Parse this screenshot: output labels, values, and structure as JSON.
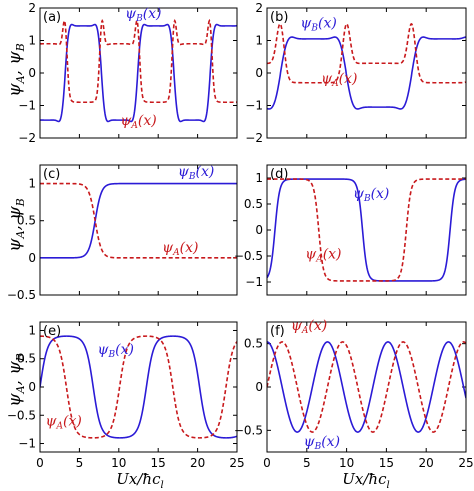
{
  "colors": {
    "psi_B": "#2b1bd6",
    "psi_A": "#c8191c",
    "axes": "#000000"
  },
  "figure": {
    "ylabel": "ψA, ψB",
    "xlabel": "Ux/ħc_l"
  },
  "chart_data": [
    {
      "panel": "(a)",
      "type": "line",
      "xlim": [
        0,
        25
      ],
      "ylim": [
        -2,
        2
      ],
      "yticks": [
        -2,
        -1,
        0,
        1,
        2
      ],
      "xticks": [
        0,
        5,
        10,
        15,
        20,
        25
      ],
      "show_xticklabels": false,
      "labels": [
        {
          "series": "ψB(x)",
          "text": "ψ_B(x)",
          "x": 10.8,
          "y": 1.7
        },
        {
          "series": "ψA(x)",
          "text": "ψ_A(x)",
          "x": 10.2,
          "y": -1.6
        }
      ],
      "series": [
        {
          "name": "ψB(x)",
          "style": "solid",
          "kind": "cnoidal",
          "params": {
            "t0": 3.2,
            "period": 9.2,
            "flat": 1.45,
            "sharp": 0.15,
            "peak": 0.9
          }
        },
        {
          "name": "ψA(x)",
          "style": "dashed",
          "kind": "cnoidal_companion",
          "params": {
            "t0": 3.2,
            "period": 9.2,
            "flat": 0.9,
            "peak": 1.5
          }
        }
      ]
    },
    {
      "panel": "(b)",
      "type": "line",
      "xlim": [
        0,
        25
      ],
      "ylim": [
        -2,
        2
      ],
      "yticks": [
        -2,
        -1,
        0,
        1,
        2
      ],
      "xticks": [
        0,
        5,
        10,
        15,
        20,
        25
      ],
      "show_xticklabels": false,
      "labels": [
        {
          "series": "ψB(x)",
          "text": "ψ_B(x)",
          "x": 4.2,
          "y": 1.4
        },
        {
          "series": "ψA(x)",
          "text": "ψ_A(x)",
          "x": 6.8,
          "y": -0.3
        }
      ],
      "series": [
        {
          "name": "ψB(x)",
          "style": "solid",
          "kind": "cnoidal",
          "params": {
            "t0": 1.7,
            "period": 16.5,
            "flat": 1.05,
            "sharp": 0.07,
            "peak": 0.9
          }
        },
        {
          "name": "ψA(x)",
          "style": "dashed",
          "kind": "cnoidal_companion",
          "params": {
            "t0": 1.7,
            "period": 16.5,
            "flat": 0.3,
            "peak": 1.5
          }
        }
      ]
    },
    {
      "panel": "(c)",
      "type": "line",
      "xlim": [
        0,
        25
      ],
      "ylim": [
        -0.5,
        1.25
      ],
      "yticks": [
        -0.5,
        0,
        0.5,
        1
      ],
      "xticks": [
        0,
        5,
        10,
        15,
        20,
        25
      ],
      "show_xticklabels": false,
      "labels": [
        {
          "series": "ψB(x)",
          "text": "ψ_B(x)",
          "x": 17.5,
          "y": 1.1
        },
        {
          "series": "ψA(x)",
          "text": "ψ_A(x)",
          "x": 15.5,
          "y": 0.08
        }
      ],
      "series": [
        {
          "name": "ψB(x)",
          "style": "solid",
          "kind": "kink_up",
          "params": {
            "x0": 7.0,
            "w": 1.6
          }
        },
        {
          "name": "ψA(x)",
          "style": "dashed",
          "kind": "kink_down",
          "params": {
            "x0": 7.0,
            "w": 1.6
          }
        }
      ]
    },
    {
      "panel": "(d)",
      "type": "line",
      "xlim": [
        0,
        25
      ],
      "ylim": [
        -1.25,
        1.25
      ],
      "yticks": [
        -1,
        -0.5,
        0,
        0.5,
        1
      ],
      "xticks": [
        0,
        5,
        10,
        15,
        20,
        25
      ],
      "show_xticklabels": false,
      "labels": [
        {
          "series": "ψB(x)",
          "text": "ψ_B(x)",
          "x": 10.8,
          "y": 0.62
        },
        {
          "series": "ψA(x)",
          "text": "ψ_A(x)",
          "x": 4.8,
          "y": -0.55
        }
      ],
      "series": [
        {
          "name": "ψB(x)",
          "style": "solid",
          "kind": "square_wave",
          "params": {
            "period": 22,
            "phase": 1.0,
            "amp": 0.98,
            "sharp": 6
          }
        },
        {
          "name": "ψA(x)",
          "style": "dashed",
          "kind": "square_wave",
          "params": {
            "period": 22,
            "phase": -4.5,
            "amp": 0.98,
            "sharp": 6
          }
        }
      ]
    },
    {
      "panel": "(e)",
      "type": "line",
      "xlim": [
        0,
        25
      ],
      "ylim": [
        -1.15,
        1.15
      ],
      "yticks": [
        -1,
        -0.5,
        0,
        0.5,
        1
      ],
      "xticks": [
        0,
        5,
        10,
        15,
        20,
        25
      ],
      "show_xticklabels": true,
      "labels": [
        {
          "series": "ψB(x)",
          "text": "ψ_B(x)",
          "x": 7.3,
          "y": 0.58
        },
        {
          "series": "ψA(x)",
          "text": "ψ_A(x)",
          "x": 0.7,
          "y": -0.68
        }
      ],
      "series": [
        {
          "name": "ψB(x)",
          "style": "solid",
          "kind": "square_wave",
          "params": {
            "period": 13.5,
            "phase": 0.0,
            "amp": 0.9,
            "sharp": 2.2
          }
        },
        {
          "name": "ψA(x)",
          "style": "dashed",
          "kind": "square_wave",
          "params": {
            "period": 13.5,
            "phase": -3.4,
            "amp": 0.9,
            "sharp": 2.2
          }
        }
      ]
    },
    {
      "panel": "(f)",
      "type": "line",
      "xlim": [
        0,
        25
      ],
      "ylim": [
        -0.75,
        0.75
      ],
      "yticks": [
        -0.5,
        0,
        0.5
      ],
      "xticks": [
        0,
        5,
        10,
        15,
        20,
        25
      ],
      "show_xticklabels": true,
      "labels": [
        {
          "series": "ψA(x)",
          "text": "ψ_A(x)",
          "x": 3.0,
          "y": 0.66
        },
        {
          "series": "ψB(x)",
          "text": "ψ_B(x)",
          "x": 4.6,
          "y": -0.68
        }
      ],
      "series": [
        {
          "name": "ψB(x)",
          "style": "solid",
          "kind": "sine",
          "params": {
            "period": 7.6,
            "phase": -1.9,
            "amp": 0.52
          }
        },
        {
          "name": "ψA(x)",
          "style": "dashed",
          "kind": "sine",
          "params": {
            "period": 7.6,
            "phase": 0.0,
            "amp": 0.52
          }
        }
      ]
    }
  ]
}
